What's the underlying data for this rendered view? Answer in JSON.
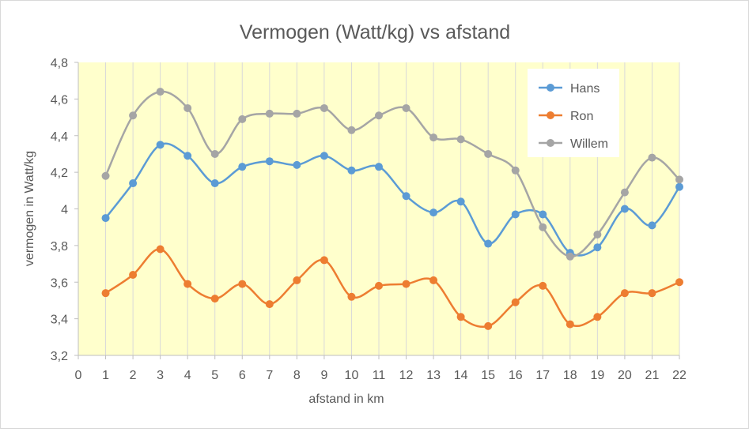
{
  "chart_data": {
    "type": "line",
    "title": "Vermogen (Watt/kg) vs afstand",
    "xlabel": "afstand in km",
    "ylabel": "vermogen in Watt/kg",
    "xlim": [
      0,
      22
    ],
    "ylim": [
      3.2,
      4.8
    ],
    "x_ticks": [
      0,
      1,
      2,
      3,
      4,
      5,
      6,
      7,
      8,
      9,
      10,
      11,
      12,
      13,
      14,
      15,
      16,
      17,
      18,
      19,
      20,
      21,
      22
    ],
    "y_ticks": [
      3.2,
      3.4,
      3.6,
      3.8,
      4.0,
      4.2,
      4.4,
      4.6,
      4.8
    ],
    "y_tick_labels": [
      "3,2",
      "3,4",
      "3,6",
      "3,8",
      "4",
      "4,2",
      "4,4",
      "4,6",
      "4,8"
    ],
    "grid": "vertical",
    "plot_background": "#ffffcc",
    "grid_color": "#d9d9d9",
    "legend_position": "top-right",
    "smooth_lines": true,
    "x": [
      1,
      2,
      3,
      4,
      5,
      6,
      7,
      8,
      9,
      10,
      11,
      12,
      13,
      14,
      15,
      16,
      17,
      18,
      19,
      20,
      21,
      22
    ],
    "series": [
      {
        "name": "Hans",
        "color": "#5b9bd5",
        "values": [
          3.95,
          4.14,
          4.35,
          4.29,
          4.14,
          4.23,
          4.26,
          4.24,
          4.29,
          4.21,
          4.23,
          4.07,
          3.98,
          4.04,
          3.81,
          3.97,
          3.97,
          3.76,
          3.79,
          4.0,
          3.91,
          4.12
        ]
      },
      {
        "name": "Ron",
        "color": "#ed7d31",
        "values": [
          3.54,
          3.64,
          3.78,
          3.59,
          3.51,
          3.59,
          3.48,
          3.61,
          3.72,
          3.52,
          3.58,
          3.59,
          3.61,
          3.41,
          3.36,
          3.49,
          3.58,
          3.37,
          3.41,
          3.54,
          3.54,
          3.6
        ]
      },
      {
        "name": "Willem",
        "color": "#a5a5a5",
        "values": [
          4.18,
          4.51,
          4.64,
          4.55,
          4.3,
          4.49,
          4.52,
          4.52,
          4.55,
          4.43,
          4.51,
          4.55,
          4.39,
          4.38,
          4.3,
          4.21,
          3.9,
          3.74,
          3.86,
          4.09,
          4.28,
          4.16
        ]
      }
    ]
  }
}
